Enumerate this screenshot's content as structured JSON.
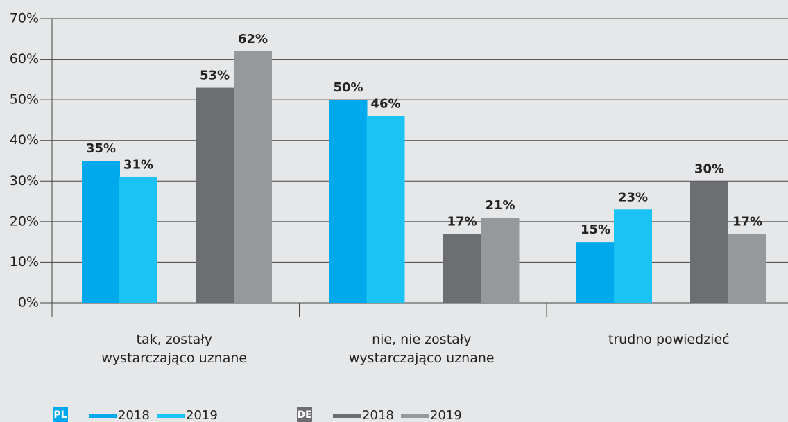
{
  "chart_data": {
    "type": "bar",
    "categories": [
      "tak, zostały\nwystarczająco uznane",
      "nie, nie zostały\nwystarczająco uznane",
      "trudno powiedzieć"
    ],
    "series": [
      {
        "name": "2018",
        "group": "PL",
        "color": "#00a9ec",
        "values": [
          35,
          50,
          15
        ],
        "value_labels": [
          "35%",
          "50%",
          "15%"
        ]
      },
      {
        "name": "2019",
        "group": "PL",
        "color": "#1ac3f3",
        "values": [
          31,
          46,
          23
        ],
        "value_labels": [
          "31%",
          "46%",
          "23%"
        ]
      },
      {
        "name": "2018",
        "group": "DE",
        "color": "#6d6e71",
        "values": [
          53,
          17,
          30
        ],
        "value_labels": [
          "53%",
          "17%",
          "30%"
        ]
      },
      {
        "name": "2019",
        "group": "DE",
        "color": "#97989b",
        "values": [
          62,
          21,
          17
        ],
        "value_labels": [
          "62%",
          "21%",
          "17%"
        ]
      }
    ],
    "ylim": [
      0,
      70
    ],
    "yticks": [
      {
        "value": 0,
        "label": "0%"
      },
      {
        "value": 10,
        "label": "10%"
      },
      {
        "value": 20,
        "label": "20%"
      },
      {
        "value": 30,
        "label": "30%"
      },
      {
        "value": 40,
        "label": "40%"
      },
      {
        "value": 50,
        "label": "50%"
      },
      {
        "value": 60,
        "label": "60%"
      },
      {
        "value": 70,
        "label": "70%"
      }
    ],
    "grid": true
  }
}
